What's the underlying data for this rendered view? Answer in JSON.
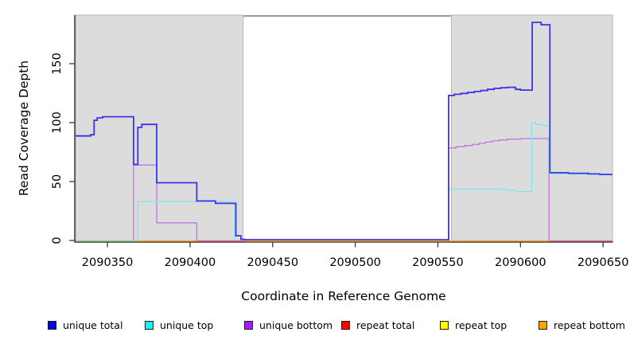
{
  "chart_data": {
    "type": "line",
    "title": "",
    "xlabel": "Coordinate in Reference Genome",
    "ylabel": "Read Coverage Depth",
    "xlim": [
      2090330.7,
      2090655.7
    ],
    "ylim": [
      0,
      190.5
    ],
    "grid": false,
    "legend_position": "bottom",
    "x_ticks": [
      2090350,
      2090400,
      2090450,
      2090500,
      2090550,
      2090600,
      2090650
    ],
    "y_ticks": [
      0,
      50,
      100,
      150
    ],
    "colors": {
      "shaded_region_fill": "#DCDCDC",
      "shaded_region_border": "#B4B4B4",
      "axis": "#3C3C3C",
      "tick_label": "#000000",
      "plot_top_border": "#7A7A7A"
    },
    "shaded_regions": [
      {
        "x0": 2090330.7,
        "x1": 2090432.1
      },
      {
        "x0": 2090558.2,
        "x1": 2090655.7
      }
    ],
    "legend": [
      {
        "label": "unique total",
        "color": "#0000FF"
      },
      {
        "label": "unique top",
        "color": "#00FFFF"
      },
      {
        "label": "unique bottom",
        "color": "#A020F0"
      },
      {
        "label": "repeat total",
        "color": "#FF0000"
      },
      {
        "label": "repeat top",
        "color": "#FFFF00"
      },
      {
        "label": "repeat bottom",
        "color": "#FFA500"
      }
    ],
    "series": [
      {
        "name": "unique total",
        "legend_color": "#0000FF",
        "line_color": "#3B33E6",
        "width": 1.8,
        "segments": [
          [
            [
              2090330.7,
              88.7
            ],
            [
              2090339.8,
              88.7
            ],
            [
              2090339.8,
              89.7
            ],
            [
              2090341.9,
              89.7
            ],
            [
              2090341.9,
              102
            ],
            [
              2090343.8,
              102
            ],
            [
              2090343.8,
              104
            ],
            [
              2090347,
              104
            ],
            [
              2090347,
              105
            ],
            [
              2090365.8,
              105
            ],
            [
              2090365.8,
              64.5
            ],
            [
              2090368.4,
              64.5
            ],
            [
              2090368.4,
              96
            ],
            [
              2090370.8,
              96
            ],
            [
              2090370.8,
              98.5
            ],
            [
              2090379.8,
              98.5
            ],
            [
              2090379.8,
              49
            ],
            [
              2090404.1,
              49
            ],
            [
              2090404.1,
              33.5
            ],
            [
              2090415.4,
              33.5
            ],
            [
              2090415.4,
              31.5
            ],
            [
              2090427.7,
              31.5
            ],
            [
              2090427.7,
              4
            ],
            [
              2090430.8,
              4
            ],
            [
              2090430.8,
              1
            ],
            [
              2090433,
              1
            ],
            [
              2090433,
              0.7
            ],
            [
              2090556.5,
              0.7
            ],
            [
              2090556.5,
              123
            ],
            [
              2090560,
              123
            ],
            [
              2090560,
              124
            ],
            [
              2090564,
              124
            ],
            [
              2090564,
              124.8
            ],
            [
              2090568,
              124.8
            ],
            [
              2090568,
              125.6
            ],
            [
              2090572,
              125.6
            ],
            [
              2090572,
              126.4
            ],
            [
              2090576,
              126.4
            ],
            [
              2090576,
              127.2
            ],
            [
              2090580,
              127.2
            ],
            [
              2090580,
              128.2
            ],
            [
              2090584,
              128.2
            ],
            [
              2090584,
              129
            ],
            [
              2090588,
              129
            ],
            [
              2090588,
              129.6
            ],
            [
              2090592,
              129.6
            ],
            [
              2090592,
              130
            ],
            [
              2090597,
              130
            ],
            [
              2090597,
              128.2
            ],
            [
              2090600,
              128.2
            ],
            [
              2090600,
              127.6
            ],
            [
              2090607.1,
              127.6
            ],
            [
              2090607.1,
              185
            ],
            [
              2090612.5,
              185
            ],
            [
              2090612.5,
              183
            ],
            [
              2090617.8,
              183
            ],
            [
              2090617.8,
              57.5
            ],
            [
              2090629,
              57.5
            ],
            [
              2090629,
              57
            ],
            [
              2090641,
              57
            ],
            [
              2090641,
              56.5
            ],
            [
              2090648,
              56.5
            ],
            [
              2090648,
              56
            ],
            [
              2090655.7,
              56
            ]
          ]
        ]
      },
      {
        "name": "unique top",
        "legend_color": "#00FFFF",
        "line_color": "#7CE8EA",
        "width": 1.3,
        "segments": [
          [
            [
              2090368.4,
              0
            ],
            [
              2090368.4,
              33
            ],
            [
              2090427,
              33
            ],
            [
              2090427,
              0
            ]
          ],
          [
            [
              2090556.5,
              0
            ],
            [
              2090556.5,
              43.5
            ],
            [
              2090592,
              43.5
            ],
            [
              2090592,
              42.5
            ],
            [
              2090597,
              42.5
            ],
            [
              2090597,
              41.5
            ],
            [
              2090606.8,
              41.5
            ],
            [
              2090606.8,
              100
            ],
            [
              2090609,
              100
            ],
            [
              2090609,
              98.5
            ],
            [
              2090613,
              98.5
            ],
            [
              2090613,
              97.5
            ],
            [
              2090617.5,
              97.5
            ],
            [
              2090617.5,
              56.8
            ],
            [
              2090655.7,
              55.8
            ]
          ]
        ]
      },
      {
        "name": "unique bottom",
        "legend_color": "#A020F0",
        "line_color": "#C473E4",
        "width": 1.3,
        "segments": [
          [
            [
              2090365.8,
              0
            ],
            [
              2090365.8,
              64
            ],
            [
              2090379.8,
              64
            ],
            [
              2090379.8,
              15
            ],
            [
              2090404.1,
              15
            ],
            [
              2090404.1,
              0
            ]
          ],
          [
            [
              2090556.5,
              0
            ],
            [
              2090556.5,
              78.5
            ],
            [
              2090561,
              78.5
            ],
            [
              2090561,
              79.5
            ],
            [
              2090566,
              79.5
            ],
            [
              2090566,
              80.5
            ],
            [
              2090571,
              80.5
            ],
            [
              2090571,
              81.5
            ],
            [
              2090575,
              81.5
            ],
            [
              2090575,
              82.5
            ],
            [
              2090579,
              82.5
            ],
            [
              2090579,
              83.5
            ],
            [
              2090583,
              83.5
            ],
            [
              2090583,
              84.5
            ],
            [
              2090587,
              84.5
            ],
            [
              2090587,
              85.3
            ],
            [
              2090592,
              85.3
            ],
            [
              2090592,
              86
            ],
            [
              2090600,
              86
            ],
            [
              2090600,
              86.5
            ],
            [
              2090617.3,
              86.5
            ],
            [
              2090617.3,
              0
            ]
          ]
        ]
      },
      {
        "name": "repeat total",
        "legend_color": "#FF0000",
        "line_color": "#E0608F",
        "width": 1.2,
        "segments": [
          [
            [
              2090330.7,
              0
            ],
            [
              2090655.7,
              0
            ]
          ]
        ]
      },
      {
        "name": "repeat top",
        "legend_color": "#FFFF00",
        "line_color": "#FFFF00",
        "width": 1.2,
        "segments": [
          [
            [
              2090330.7,
              0
            ],
            [
              2090655.7,
              0
            ]
          ]
        ]
      },
      {
        "name": "repeat bottom",
        "legend_color": "#FFA500",
        "line_color": "#FFA41E",
        "width": 1.2,
        "segments": [
          [
            [
              2090330.7,
              0
            ],
            [
              2090655.7,
              0
            ]
          ]
        ]
      }
    ],
    "baseline_segments": [
      {
        "x0": 2090330.7,
        "x1": 2090617.3,
        "color": "#FFA41E"
      },
      {
        "x0": 2090330.7,
        "x1": 2090368.4,
        "color": "#8FCF92"
      },
      {
        "x0": 2090404.1,
        "x1": 2090433.0,
        "color": "#E0608F"
      },
      {
        "x0": 2090617.3,
        "x1": 2090655.7,
        "color": "#E0608F"
      }
    ],
    "render_order": [
      "baseline",
      "unique bottom",
      "unique top",
      "unique total"
    ]
  }
}
